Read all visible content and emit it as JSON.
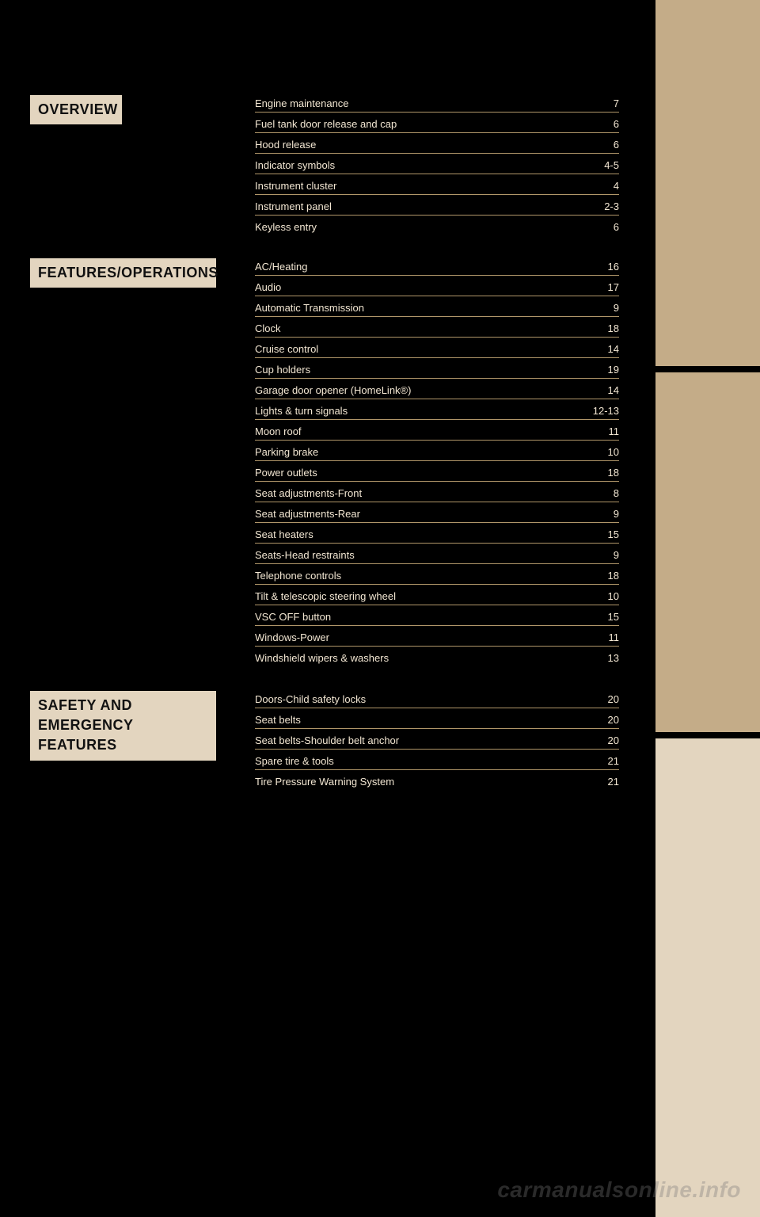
{
  "labels": {
    "overview": "OVERVIEW",
    "features": "FEATURES/OPERATIONS",
    "safety_line1": "SAFETY AND",
    "safety_line2": "EMERGENCY FEATURES"
  },
  "watermark": "carmanualsonline.info",
  "toc_overview": [
    {
      "title": "Engine maintenance",
      "page": "7"
    },
    {
      "title": "Fuel tank door release and cap",
      "page": "6"
    },
    {
      "title": "Hood release",
      "page": "6"
    },
    {
      "title": "Indicator symbols",
      "page": "4-5"
    },
    {
      "title": "Instrument cluster",
      "page": "4"
    },
    {
      "title": "Instrument panel",
      "page": "2-3"
    },
    {
      "title": "Keyless entry",
      "page": "6"
    }
  ],
  "toc_features": [
    {
      "title": "AC/Heating",
      "page": "16"
    },
    {
      "title": "Audio",
      "page": "17"
    },
    {
      "title": "Automatic Transmission",
      "page": "9"
    },
    {
      "title": "Clock",
      "page": "18"
    },
    {
      "title": "Cruise control",
      "page": "14"
    },
    {
      "title": "Cup holders",
      "page": "19"
    },
    {
      "title": "Garage door opener (HomeLink®)",
      "page": "14"
    },
    {
      "title": "Lights & turn signals",
      "page": "12-13"
    },
    {
      "title": "Moon roof",
      "page": "11"
    },
    {
      "title": "Parking brake",
      "page": "10"
    },
    {
      "title": "Power outlets",
      "page": "18"
    },
    {
      "title": "Seat adjustments-Front",
      "page": "8"
    },
    {
      "title": "Seat adjustments-Rear",
      "page": "9"
    },
    {
      "title": "Seat heaters",
      "page": "15"
    },
    {
      "title": "Seats-Head restraints",
      "page": "9"
    },
    {
      "title": "Telephone controls",
      "page": "18"
    },
    {
      "title": "Tilt & telescopic steering wheel",
      "page": "10"
    },
    {
      "title": "VSC OFF button",
      "page": "15"
    },
    {
      "title": "Windows-Power",
      "page": "11"
    },
    {
      "title": "Windshield wipers & washers",
      "page": "13"
    }
  ],
  "toc_safety": [
    {
      "title": "Doors-Child safety locks",
      "page": "20"
    },
    {
      "title": "Seat belts",
      "page": "20"
    },
    {
      "title": "Seat belts-Shoulder belt anchor",
      "page": "20"
    },
    {
      "title": "Spare tire & tools",
      "page": "21"
    },
    {
      "title": "Tire Pressure Warning System",
      "page": "21"
    }
  ],
  "colors": {
    "page_bg": "#000000",
    "tab_tan": "#c4ac88",
    "tab_light": "#e3d5bf",
    "rule": "#b09669",
    "text": "#f2e6d2",
    "label_bg": "#e3d5bf",
    "label_text": "#111111"
  }
}
